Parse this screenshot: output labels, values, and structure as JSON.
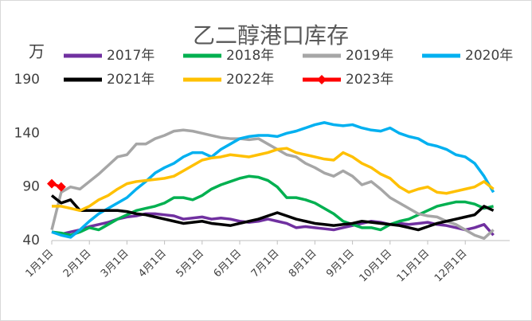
{
  "chart_data": {
    "type": "line",
    "title": "乙二醇港口库存",
    "y_label": "万",
    "categories": [
      "1月1日",
      null,
      null,
      null,
      "2月1日",
      null,
      null,
      null,
      "3月1日",
      null,
      null,
      null,
      "4月1日",
      null,
      null,
      null,
      "5月1日",
      null,
      null,
      null,
      "6月1日",
      null,
      null,
      null,
      "7月1日",
      null,
      null,
      null,
      "8月1日",
      null,
      null,
      null,
      "9月1日",
      null,
      null,
      null,
      "10月1日",
      null,
      null,
      null,
      "11月1日",
      null,
      null,
      null,
      "12月1日",
      null,
      null,
      null
    ],
    "ylim": [
      40,
      190
    ],
    "yticks": [
      40,
      90,
      140,
      190
    ],
    "grid": false,
    "series": [
      {
        "name": "2017年",
        "color": "#7030a0",
        "values": [
          48,
          46,
          48,
          50,
          53,
          55,
          57,
          60,
          62,
          63,
          65,
          65,
          64,
          63,
          60,
          61,
          62,
          60,
          61,
          60,
          58,
          57,
          58,
          60,
          58,
          56,
          52,
          53,
          52,
          51,
          50,
          52,
          54,
          56,
          58,
          57,
          55,
          56,
          55,
          56,
          57,
          55,
          54,
          52,
          50,
          52,
          55,
          45
        ]
      },
      {
        "name": "2018年",
        "color": "#00b050",
        "values": [
          48,
          47,
          45,
          48,
          52,
          50,
          55,
          60,
          64,
          68,
          70,
          72,
          75,
          80,
          80,
          78,
          82,
          88,
          92,
          95,
          98,
          100,
          99,
          96,
          90,
          80,
          80,
          78,
          75,
          70,
          65,
          58,
          55,
          52,
          52,
          50,
          55,
          58,
          60,
          64,
          68,
          72,
          74,
          76,
          76,
          74,
          70,
          72
        ]
      },
      {
        "name": "2019年",
        "color": "#a6a6a6",
        "values": [
          50,
          85,
          90,
          88,
          95,
          102,
          110,
          118,
          120,
          130,
          130,
          135,
          138,
          142,
          143,
          142,
          140,
          138,
          136,
          135,
          135,
          134,
          135,
          130,
          125,
          120,
          118,
          112,
          108,
          103,
          100,
          105,
          100,
          92,
          95,
          88,
          80,
          75,
          70,
          65,
          63,
          62,
          58,
          55,
          50,
          45,
          42,
          50
        ]
      },
      {
        "name": "2020年",
        "color": "#00b0f0",
        "values": [
          48,
          45,
          43,
          50,
          58,
          65,
          70,
          75,
          80,
          88,
          95,
          103,
          108,
          112,
          118,
          122,
          122,
          118,
          125,
          130,
          135,
          137,
          138,
          138,
          137,
          140,
          142,
          145,
          148,
          150,
          148,
          147,
          148,
          145,
          143,
          142,
          145,
          140,
          137,
          135,
          130,
          128,
          125,
          120,
          118,
          112,
          100,
          85
        ]
      },
      {
        "name": "2021年",
        "color": "#000000",
        "values": [
          82,
          75,
          78,
          68,
          68,
          68,
          68,
          68,
          67,
          65,
          64,
          62,
          60,
          58,
          56,
          57,
          58,
          56,
          55,
          54,
          56,
          58,
          60,
          63,
          66,
          63,
          60,
          58,
          56,
          55,
          54,
          55,
          56,
          58,
          57,
          56,
          55,
          54,
          52,
          50,
          53,
          56,
          58,
          60,
          62,
          64,
          72,
          68
        ]
      },
      {
        "name": "2022年",
        "color": "#ffc000",
        "values": [
          72,
          72,
          70,
          68,
          72,
          78,
          82,
          88,
          93,
          95,
          96,
          97,
          98,
          100,
          105,
          110,
          115,
          117,
          118,
          120,
          119,
          118,
          120,
          122,
          125,
          126,
          122,
          120,
          118,
          116,
          115,
          122,
          118,
          112,
          108,
          102,
          98,
          90,
          85,
          88,
          90,
          85,
          84,
          86,
          88,
          90,
          95,
          88
        ]
      },
      {
        "name": "2023年",
        "color": "#ff0000",
        "marker": "diamond",
        "values": [
          93,
          90,
          null,
          null,
          null,
          null,
          null,
          null,
          null,
          null,
          null,
          null,
          null,
          null,
          null,
          null,
          null,
          null,
          null,
          null,
          null,
          null,
          null,
          null,
          null,
          null,
          null,
          null,
          null,
          null,
          null,
          null,
          null,
          null,
          null,
          null,
          null,
          null,
          null,
          null,
          null,
          null,
          null,
          null,
          null,
          null,
          null,
          null
        ]
      }
    ]
  }
}
